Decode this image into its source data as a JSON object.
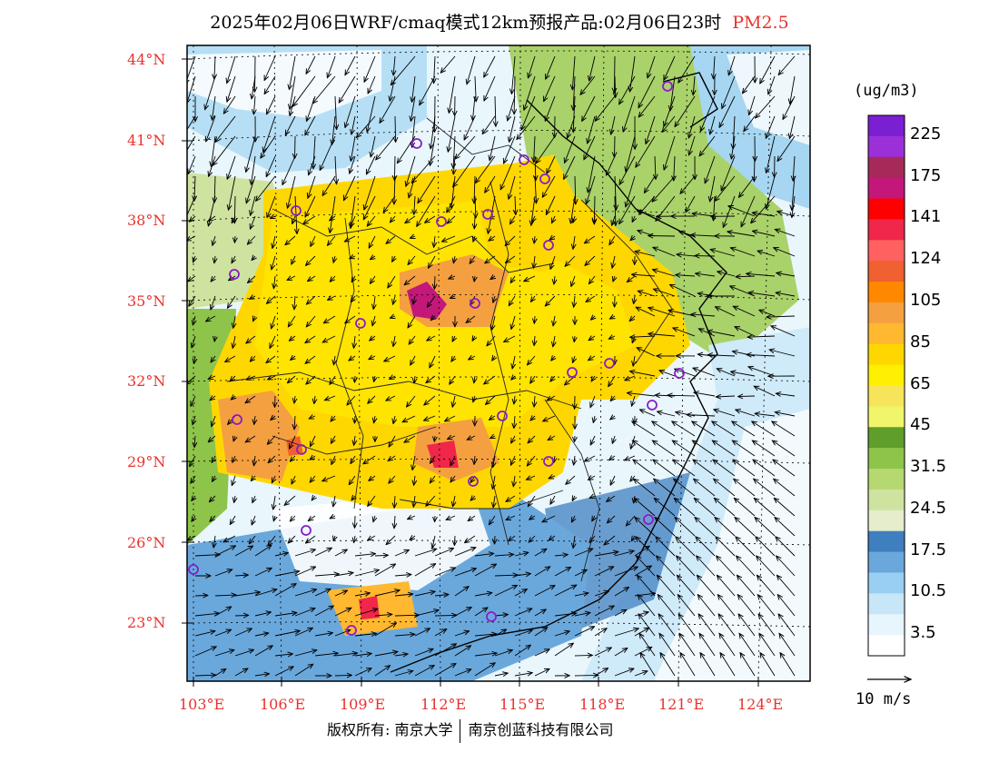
{
  "title": {
    "main": "2025年02月06日WRF/cmaq模式12km预报产品:02月06日23时",
    "species": "PM2.5"
  },
  "lat_labels": [
    "44°N",
    "41°N",
    "38°N",
    "35°N",
    "32°N",
    "29°N",
    "26°N",
    "23°N"
  ],
  "lon_labels": [
    "103°E",
    "106°E",
    "109°E",
    "112°E",
    "115°E",
    "118°E",
    "121°E",
    "124°E"
  ],
  "colorbar": {
    "unit": "(ug/m3)",
    "labels": [
      "225",
      "175",
      "141",
      "124",
      "105",
      "85",
      "65",
      "45",
      "31.5",
      "24.5",
      "17.5",
      "10.5",
      "3.5"
    ],
    "colors": [
      "#7a1fd2",
      "#9b30d9",
      "#a52a5a",
      "#c3187a",
      "#ff0000",
      "#f0264a",
      "#ff6060",
      "#f06030",
      "#ff8800",
      "#f4a040",
      "#ffb830",
      "#ffd700",
      "#ffef00",
      "#f6e45a",
      "#f0f56a",
      "#5f9e2a",
      "#8ec44a",
      "#b5d870",
      "#cfe3a0",
      "#e5edcc",
      "#3f7fc0",
      "#6aa8dc",
      "#98cff2",
      "#c7e6f8",
      "#e7f5fc",
      "#ffffff"
    ]
  },
  "wind_reference": "10 m/s",
  "footer": {
    "left": "版权所有: 南京大学",
    "right": "南京创蓝科技有限公司"
  },
  "colors": {
    "axis_label": "#e8322e",
    "frame": "#000000",
    "city_marker": "#8a1cc8"
  }
}
